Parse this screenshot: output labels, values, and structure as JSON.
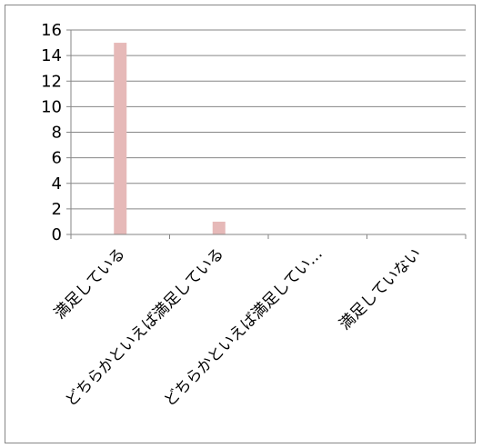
{
  "chart_data": {
    "type": "bar",
    "categories": [
      "満足している",
      "どちらかといえば満足している",
      "どちらかといえば満足してい…",
      "満足していない"
    ],
    "values": [
      15,
      1,
      0,
      0
    ],
    "title": "",
    "xlabel": "",
    "ylabel": "",
    "ylim": [
      0,
      16
    ],
    "yticks": [
      0,
      2,
      4,
      6,
      8,
      10,
      12,
      14,
      16
    ],
    "grid": true,
    "legend": "none",
    "colors": {
      "bar": "#e6b9b8",
      "grid": "#868686",
      "axis": "#868686"
    }
  }
}
